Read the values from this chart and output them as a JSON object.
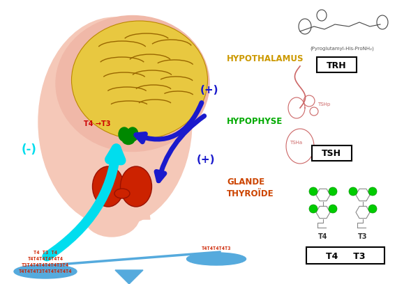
{
  "bg_color": "#ffffff",
  "hypothalamus_label": "HYPOTHALAMUS",
  "hypophyse_label": "HYPOPHYSE",
  "glande_label": "GLANDE\nTHYROÏDE",
  "hypothalamus_color": "#cc9900",
  "hypophyse_color": "#00aa00",
  "glande_color": "#cc4400",
  "trh_label": "TRH",
  "tsh_label": "TSH",
  "t4t3_label": "T4     T3",
  "plus1_label": "(+)",
  "plus2_label": "(+)",
  "minus_label": "(-)",
  "t4_to_t3_label": "T4 →T3",
  "arrow_color_dark": "#1a1acc",
  "arrow_color_cyan": "#00ddee",
  "scale_color": "#55aadd",
  "scale_left_text_lines": [
    "T4 T3 T4",
    "T4T4T4T4T4T4",
    "T3T4T4T4T4T4T3T4",
    "T4T4T4T3T4T4T4T4T4"
  ],
  "scale_right_text": "T4T4T4T4T3",
  "scale_text_color": "#cc2200",
  "head_skin_color": "#f5c8b8",
  "brain_outer_color": "#f0b8a8",
  "brain_inner_color": "#e8c840",
  "thyroid_color": "#cc2200",
  "pituitary_color": "#008800",
  "neck_color": "#f5c8b8"
}
